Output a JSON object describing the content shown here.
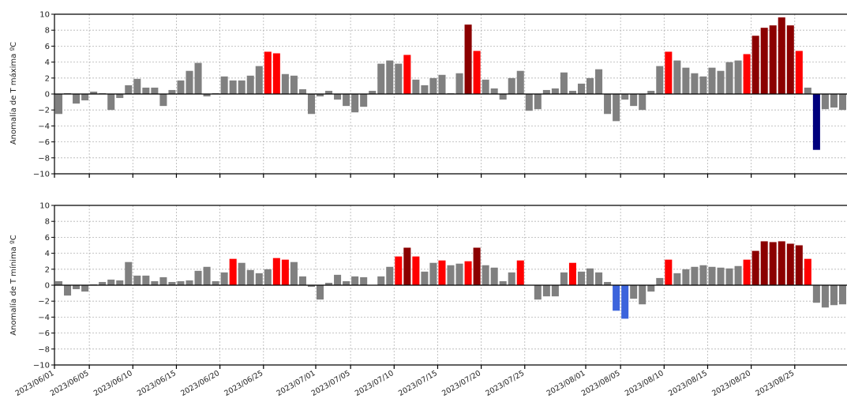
{
  "colors": {
    "normal": "#808080",
    "warm": "#ff0000",
    "hot": "#8b0000",
    "cool": "#3c64dc",
    "cold": "#00007d",
    "grid": "#b4b4b4",
    "axis": "#000000"
  },
  "chart_data": [
    {
      "type": "bar",
      "ylabel": "Anomalía de T máxima ºC",
      "ylim": [
        -10,
        10
      ],
      "yticks": [
        -10,
        -8,
        -6,
        -4,
        -2,
        0,
        2,
        4,
        6,
        8,
        10
      ],
      "grid": true,
      "start_date": "2023/06/01",
      "x_tick_labels": [
        "2023/06/01",
        "2023/06/05",
        "2023/06/10",
        "2023/06/15",
        "2023/06/20",
        "2023/06/25",
        "2023/07/01",
        "2023/07/05",
        "2023/07/10",
        "2023/07/15",
        "2023/07/20",
        "2023/07/25",
        "2023/08/01",
        "2023/08/05",
        "2023/08/10",
        "2023/08/15",
        "2023/08/20",
        "2023/08/25"
      ],
      "values": [
        -2.5,
        0.1,
        -1.2,
        -0.8,
        0.3,
        0.1,
        -2.0,
        -0.5,
        1.1,
        1.9,
        0.8,
        0.8,
        -1.5,
        0.5,
        1.7,
        2.9,
        3.9,
        -0.3,
        0.1,
        2.2,
        1.7,
        1.7,
        2.3,
        3.5,
        5.3,
        5.1,
        2.5,
        2.3,
        0.6,
        -2.5,
        -0.3,
        0.4,
        -0.7,
        -1.5,
        -2.3,
        -1.6,
        0.4,
        3.8,
        4.2,
        3.8,
        4.9,
        1.8,
        1.1,
        2.0,
        2.4,
        0.1,
        2.6,
        8.7,
        5.4,
        1.8,
        0.7,
        -0.7,
        2.0,
        2.9,
        -2.1,
        -1.9,
        0.5,
        0.7,
        2.7,
        0.4,
        1.3,
        2.0,
        3.1,
        -2.5,
        -3.4,
        -0.7,
        -1.5,
        -2.0,
        0.4,
        3.5,
        5.3,
        4.2,
        3.3,
        2.6,
        2.2,
        3.3,
        2.9,
        4.0,
        4.2,
        5.0,
        7.3,
        8.3,
        8.6,
        9.6,
        8.6,
        5.4,
        0.8,
        -7.0,
        -1.9,
        -1.7,
        -2.0
      ],
      "categories_color": [
        "normal",
        "normal",
        "normal",
        "normal",
        "normal",
        "normal",
        "normal",
        "normal",
        "normal",
        "normal",
        "normal",
        "normal",
        "normal",
        "normal",
        "normal",
        "normal",
        "normal",
        "normal",
        "normal",
        "normal",
        "normal",
        "normal",
        "normal",
        "normal",
        "warm",
        "warm",
        "normal",
        "normal",
        "normal",
        "normal",
        "normal",
        "normal",
        "normal",
        "normal",
        "normal",
        "normal",
        "normal",
        "normal",
        "normal",
        "normal",
        "warm",
        "normal",
        "normal",
        "normal",
        "normal",
        "normal",
        "normal",
        "hot",
        "warm",
        "normal",
        "normal",
        "normal",
        "normal",
        "normal",
        "normal",
        "normal",
        "normal",
        "normal",
        "normal",
        "normal",
        "normal",
        "normal",
        "normal",
        "normal",
        "normal",
        "normal",
        "normal",
        "normal",
        "normal",
        "normal",
        "warm",
        "normal",
        "normal",
        "normal",
        "normal",
        "normal",
        "normal",
        "normal",
        "normal",
        "warm",
        "hot",
        "hot",
        "hot",
        "hot",
        "hot",
        "warm",
        "normal",
        "cold",
        "normal",
        "normal",
        "normal"
      ]
    },
    {
      "type": "bar",
      "ylabel": "Anomalía de T mínima ºC",
      "ylim": [
        -10,
        10
      ],
      "yticks": [
        -10,
        -8,
        -6,
        -4,
        -2,
        0,
        2,
        4,
        6,
        8,
        10
      ],
      "grid": true,
      "start_date": "2023/06/01",
      "x_tick_labels": [
        "2023/06/01",
        "2023/06/05",
        "2023/06/10",
        "2023/06/15",
        "2023/06/20",
        "2023/06/25",
        "2023/07/01",
        "2023/07/05",
        "2023/07/10",
        "2023/07/15",
        "2023/07/20",
        "2023/07/25",
        "2023/08/01",
        "2023/08/05",
        "2023/08/10",
        "2023/08/15",
        "2023/08/20",
        "2023/08/25"
      ],
      "values": [
        0.5,
        -1.3,
        -0.5,
        -0.8,
        0.1,
        0.4,
        0.7,
        0.6,
        2.9,
        1.2,
        1.2,
        0.5,
        1.0,
        0.4,
        0.5,
        0.6,
        1.8,
        2.3,
        0.5,
        1.6,
        3.3,
        2.8,
        1.9,
        1.5,
        2.0,
        3.4,
        3.2,
        2.9,
        1.1,
        -0.2,
        -1.8,
        0.3,
        1.3,
        0.5,
        1.1,
        1.0,
        0.0,
        1.1,
        2.3,
        3.6,
        4.7,
        3.6,
        1.7,
        2.8,
        3.1,
        2.5,
        2.7,
        3.0,
        4.7,
        2.5,
        2.2,
        0.5,
        1.6,
        3.1,
        0.0,
        -1.8,
        -1.4,
        -1.4,
        1.6,
        2.8,
        1.7,
        2.1,
        1.6,
        0.4,
        -3.2,
        -4.2,
        -1.7,
        -2.4,
        -0.8,
        0.9,
        3.2,
        1.5,
        2.0,
        2.3,
        2.5,
        2.3,
        2.2,
        2.1,
        2.4,
        3.2,
        4.3,
        5.5,
        5.4,
        5.5,
        5.2,
        5.0,
        3.3,
        -2.2,
        -2.8,
        -2.5,
        -2.4
      ],
      "categories_color": [
        "normal",
        "normal",
        "normal",
        "normal",
        "normal",
        "normal",
        "normal",
        "normal",
        "normal",
        "normal",
        "normal",
        "normal",
        "normal",
        "normal",
        "normal",
        "normal",
        "normal",
        "normal",
        "normal",
        "normal",
        "warm",
        "normal",
        "normal",
        "normal",
        "normal",
        "warm",
        "warm",
        "normal",
        "normal",
        "normal",
        "normal",
        "normal",
        "normal",
        "normal",
        "normal",
        "normal",
        "normal",
        "normal",
        "normal",
        "warm",
        "hot",
        "warm",
        "normal",
        "normal",
        "warm",
        "normal",
        "normal",
        "warm",
        "hot",
        "normal",
        "normal",
        "normal",
        "normal",
        "warm",
        "normal",
        "normal",
        "normal",
        "normal",
        "normal",
        "warm",
        "normal",
        "normal",
        "normal",
        "normal",
        "cool",
        "cool",
        "normal",
        "normal",
        "normal",
        "normal",
        "warm",
        "normal",
        "normal",
        "normal",
        "normal",
        "normal",
        "normal",
        "normal",
        "normal",
        "warm",
        "hot",
        "hot",
        "hot",
        "hot",
        "hot",
        "hot",
        "warm",
        "normal",
        "normal",
        "normal",
        "normal"
      ]
    }
  ]
}
